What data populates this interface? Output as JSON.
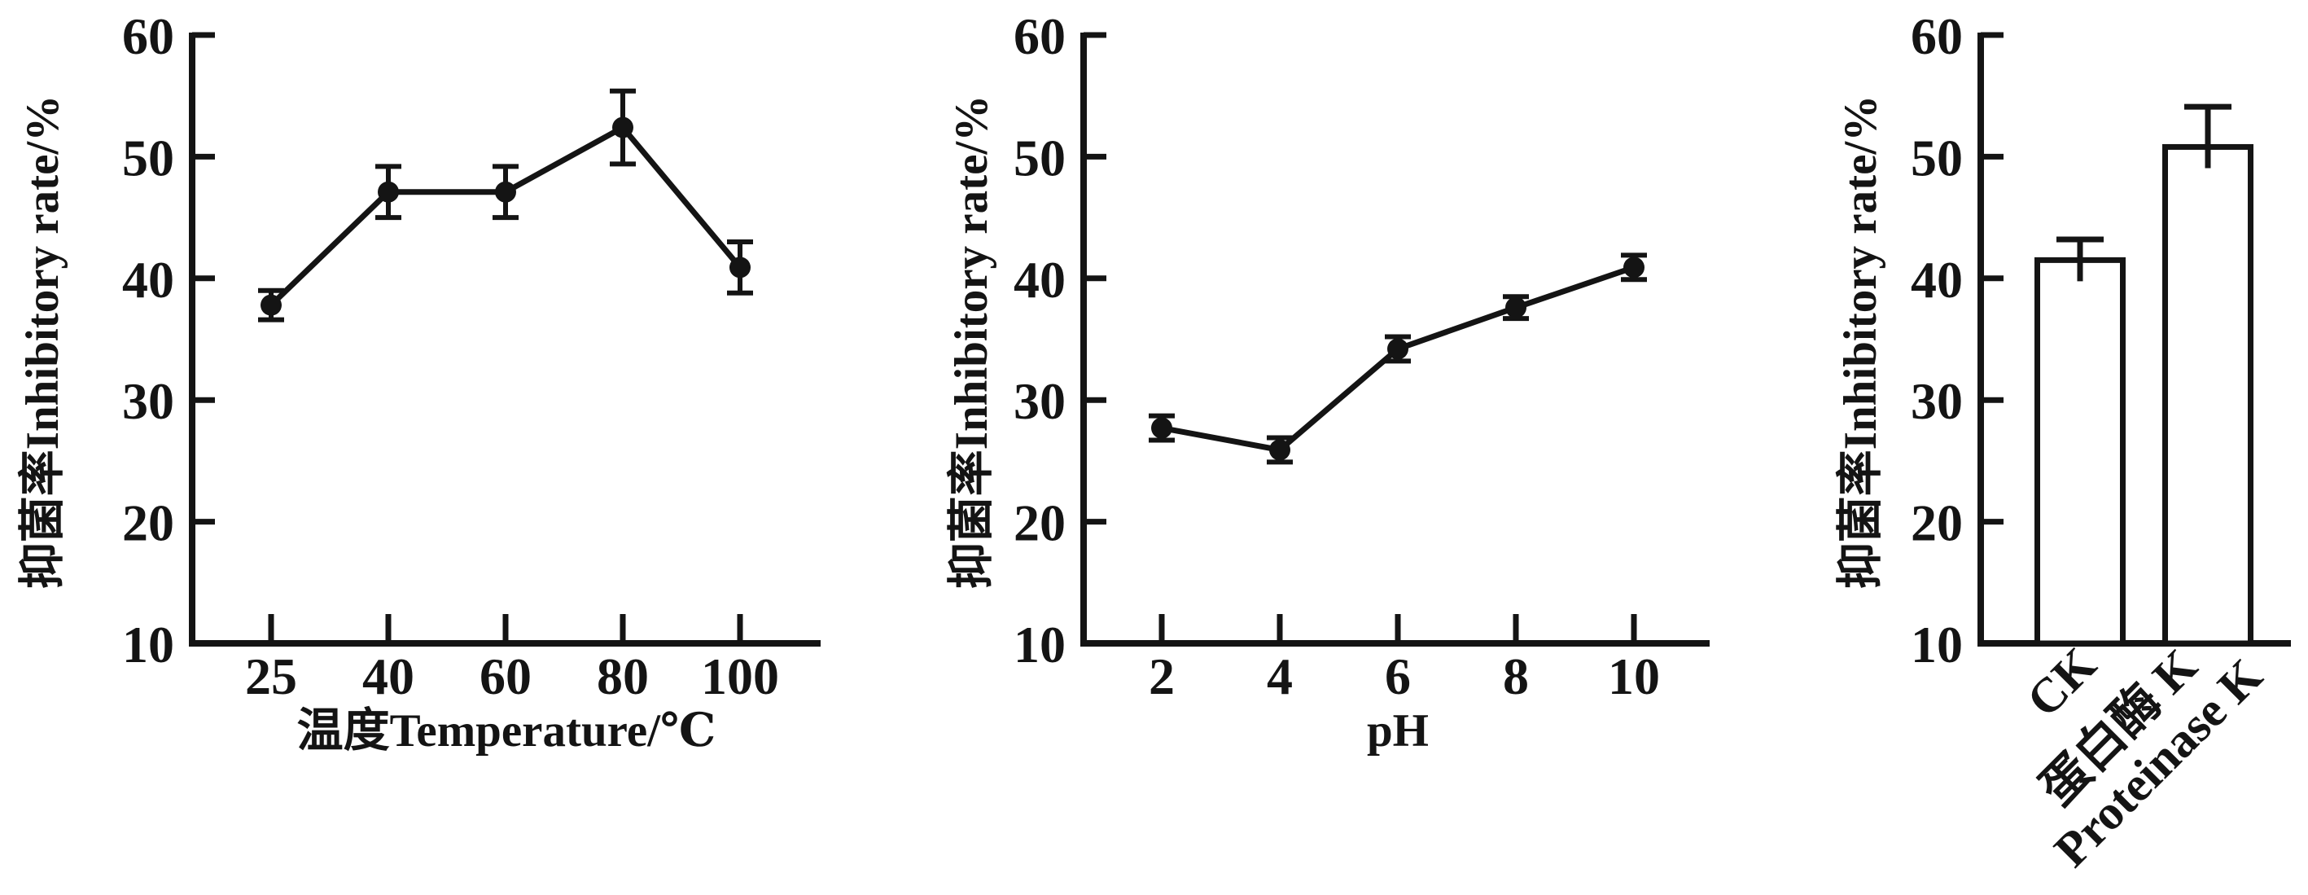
{
  "figure": {
    "background": "#ffffff",
    "ink_color": "#141414",
    "description": "Three-panel antibacterial stability figure"
  },
  "chart_data": [
    {
      "id": "temperature-effect",
      "type": "line",
      "title": "",
      "xlabel": "温度Temperature/℃",
      "ylabel": "抑菌率Inhibitory rate/%",
      "x_tick_labels": [
        "25",
        "40",
        "60",
        "80",
        "100"
      ],
      "x": [
        25,
        40,
        60,
        80,
        100
      ],
      "y_ticks": [
        10,
        20,
        30,
        40,
        50,
        60
      ],
      "ylim": [
        10,
        60
      ],
      "grid": false,
      "legend": false,
      "marker": "filled-circle",
      "series": [
        {
          "name": "inhibitory rate",
          "values": [
            37.8,
            47.1,
            47.1,
            52.4,
            40.9
          ],
          "errors": [
            1.2,
            2.1,
            2.1,
            3.0,
            2.1
          ]
        }
      ]
    },
    {
      "id": "ph-effect",
      "type": "line",
      "title": "",
      "xlabel": "pH",
      "ylabel": "抑菌率Inhibitory rate/%",
      "x_tick_labels": [
        "2",
        "4",
        "6",
        "8",
        "10"
      ],
      "x": [
        2,
        4,
        6,
        8,
        10
      ],
      "y_ticks": [
        10,
        20,
        30,
        40,
        50,
        60
      ],
      "ylim": [
        10,
        60
      ],
      "grid": false,
      "legend": false,
      "marker": "filled-circle",
      "series": [
        {
          "name": "inhibitory rate",
          "values": [
            27.7,
            25.9,
            34.2,
            37.6,
            40.9
          ],
          "errors": [
            1.0,
            1.0,
            1.0,
            0.9,
            1.0
          ]
        }
      ]
    },
    {
      "id": "proteinase-k-treatment",
      "type": "bar",
      "title": "",
      "xlabel": "",
      "ylabel": "抑菌率Inhibitory rate/%",
      "y_ticks": [
        10,
        20,
        30,
        40,
        50,
        60
      ],
      "ylim": [
        10,
        60
      ],
      "grid": false,
      "legend": false,
      "bar_fill": "#ffffff",
      "categories": [
        {
          "lines": [
            "CK"
          ]
        },
        {
          "lines": [
            "蛋白酶 K",
            "Proteinase K"
          ]
        }
      ],
      "values": [
        41.5,
        50.8
      ],
      "errors": [
        1.7,
        3.3
      ]
    }
  ]
}
